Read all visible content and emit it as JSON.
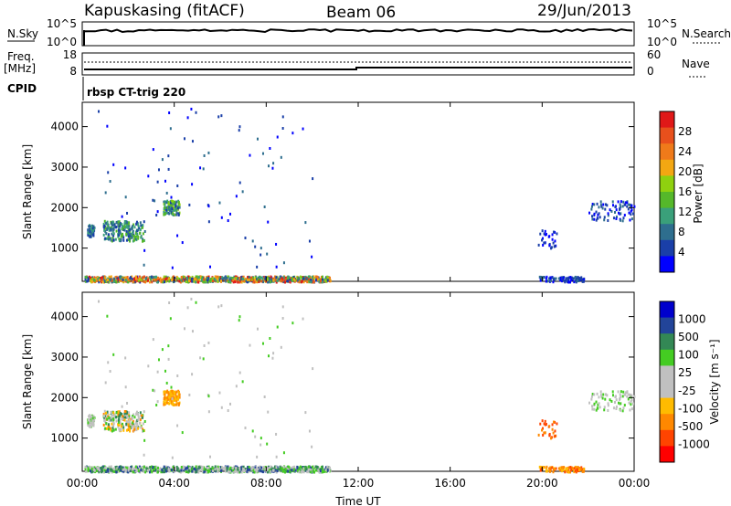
{
  "header": {
    "station": "Kapuskasing (fitACF)",
    "beam": "Beam 06",
    "date": "29/Jun/2013"
  },
  "top_panels": {
    "nsky_label": "N.Sky",
    "nsearch_label": "N.Search",
    "freq_label_1": "Freq.",
    "freq_label_2": "[MHz]",
    "nave_label": "Nave",
    "cpid_label": "CPID",
    "cpid_text": "rbsp CT-trig 220",
    "noise_ticks": [
      "10^5",
      "10^0"
    ],
    "freq_ticks": [
      "18",
      "8"
    ],
    "nave_ticks": [
      "60",
      "0"
    ]
  },
  "colors": {
    "power": [
      "#0000ff",
      "#1a3fa8",
      "#2e6e8e",
      "#3aa07a",
      "#55b82a",
      "#8fd10f",
      "#f3a712",
      "#ef7a1a",
      "#e8501c",
      "#e01818"
    ],
    "velocity": [
      "#ff0000",
      "#ff4400",
      "#ff8800",
      "#ffbb00",
      "#c0c0c0",
      "#c0c0c0",
      "#44cc22",
      "#338855",
      "#224499",
      "#0000cc"
    ]
  },
  "chart_data": [
    {
      "type": "heatmap",
      "title": "",
      "xlabel": "",
      "ylabel": "Slant Range [km]",
      "colorbar_label": "Power [dB]",
      "colorbar_ticks": [
        "28",
        "24",
        "20",
        "16",
        "12",
        "8",
        "4"
      ],
      "xlim": [
        0,
        24
      ],
      "ylim": [
        180,
        4600
      ],
      "yticks": [
        "4000",
        "3000",
        "2000",
        "1000"
      ],
      "xticks": []
    },
    {
      "type": "heatmap",
      "title": "",
      "xlabel": "Time UT",
      "ylabel": "Slant Range [km]",
      "colorbar_label": "Velocity [m s⁻¹]",
      "colorbar_ticks": [
        "1000",
        "500",
        "100",
        "25",
        "-25",
        "-100",
        "-500",
        "-1000"
      ],
      "xlim": [
        0,
        24
      ],
      "ylim": [
        180,
        4600
      ],
      "yticks": [
        "4000",
        "3000",
        "2000",
        "1000"
      ],
      "xticks": [
        "00:00",
        "04:00",
        "08:00",
        "12:00",
        "16:00",
        "20:00",
        "00:00"
      ]
    }
  ]
}
